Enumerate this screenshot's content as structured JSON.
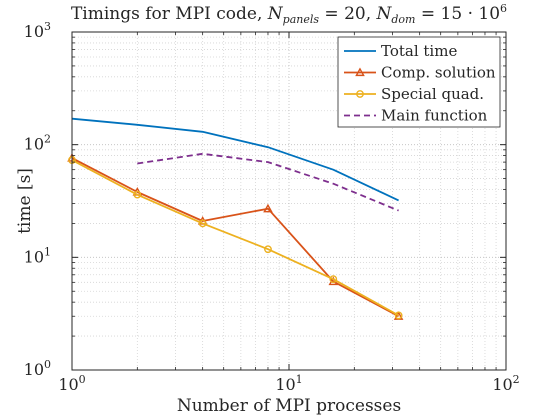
{
  "chart_data": {
    "type": "line",
    "title": "Timings for MPI code, N_panels = 20, N_dom = 15 · 10^6",
    "title_parts": {
      "prefix": "Timings for MPI code, ",
      "n_symbol": "N",
      "panels_sub": "panels",
      "panels_eq": " = 20, ",
      "dom_sub": "dom",
      "dom_eq": " = 15 · 10",
      "dom_exp": "6"
    },
    "xlabel": "Number of MPI processes",
    "ylabel": "time [s]",
    "xscale": "log",
    "yscale": "log",
    "xlim": [
      1,
      100
    ],
    "ylim": [
      1,
      1000
    ],
    "x_ticks": [
      {
        "value": 1,
        "base": "10",
        "exp": "0"
      },
      {
        "value": 10,
        "base": "10",
        "exp": "1"
      },
      {
        "value": 100,
        "base": "10",
        "exp": "2"
      }
    ],
    "y_ticks": [
      {
        "value": 1,
        "base": "10",
        "exp": "0"
      },
      {
        "value": 10,
        "base": "10",
        "exp": "1"
      },
      {
        "value": 100,
        "base": "10",
        "exp": "2"
      },
      {
        "value": 1000,
        "base": "10",
        "exp": "3"
      }
    ],
    "grid": "major and minor, dotted",
    "legend_position": "top-right",
    "series": [
      {
        "name": "Total time",
        "color": "#0072BD",
        "style": "solid",
        "marker": "none",
        "x": [
          1,
          2,
          4,
          8,
          16,
          32
        ],
        "y": [
          170,
          150,
          130,
          95,
          60,
          32
        ]
      },
      {
        "name": "Comp. solution",
        "color": "#D95319",
        "style": "solid",
        "marker": "triangle",
        "x": [
          1,
          2,
          4,
          8,
          16,
          32
        ],
        "y": [
          76,
          38,
          21,
          27,
          6.1,
          3.0
        ]
      },
      {
        "name": "Special quad.",
        "color": "#EDB120",
        "style": "solid",
        "marker": "circle",
        "x": [
          1,
          2,
          4,
          8,
          16,
          32
        ],
        "y": [
          73,
          36,
          20,
          11.8,
          6.4,
          3.05
        ]
      },
      {
        "name": "Main function",
        "color": "#7E2F8E",
        "style": "dashed",
        "marker": "none",
        "x": [
          2,
          4,
          8,
          16,
          32
        ],
        "y": [
          68,
          83,
          70,
          45,
          26
        ]
      }
    ]
  }
}
